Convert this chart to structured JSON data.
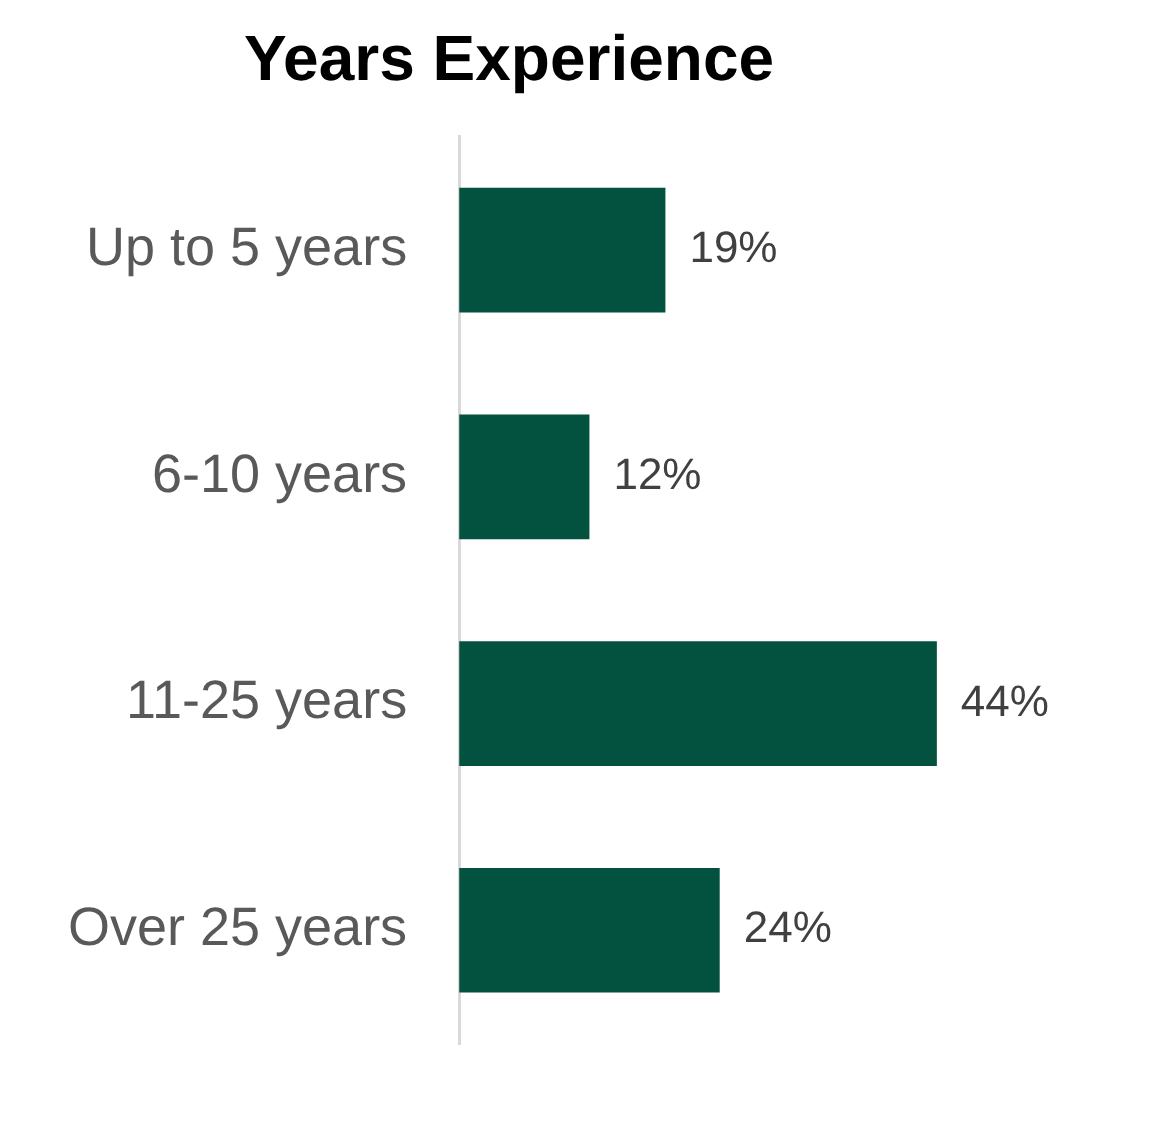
{
  "chart_data": {
    "type": "bar",
    "orientation": "horizontal",
    "title": "Years Experience",
    "categories": [
      "Up to 5 years",
      "6-10 years",
      "11-25 years",
      "Over 25 years"
    ],
    "values": [
      19,
      12,
      44,
      24
    ],
    "color": "#03513f",
    "value_labels": [
      "19%",
      "12%",
      "44%",
      "24%"
    ],
    "tick_labels": "y",
    "grid": false,
    "legend": false
  }
}
